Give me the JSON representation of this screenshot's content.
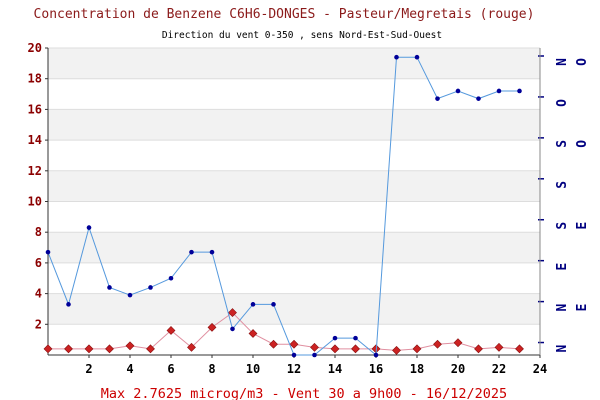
{
  "chart_data": {
    "type": "line",
    "title": "Concentration de Benzene C6H6-DONGES - Pasteur/Megretais (rouge)",
    "subtitle": "Direction du vent 0-350 , sens Nord-Est-Sud-Ouest",
    "footer": "Max 2.7625 microg/m3 - Vent 30  a 9h00 - 16/12/2025",
    "x": [
      0,
      1,
      2,
      3,
      4,
      5,
      6,
      7,
      8,
      9,
      10,
      11,
      12,
      13,
      14,
      15,
      16,
      17,
      18,
      19,
      20,
      21,
      22,
      23
    ],
    "xlim": [
      0,
      24
    ],
    "x_ticks": [
      2,
      4,
      6,
      8,
      10,
      12,
      14,
      16,
      18,
      20,
      22,
      24
    ],
    "ylim": [
      0,
      20
    ],
    "y_ticks": [
      2,
      4,
      6,
      8,
      10,
      12,
      14,
      16,
      18,
      20
    ],
    "grid": "alternating horizontal bands",
    "series": [
      {
        "axis": "left",
        "color": "#cc2222",
        "line_color": "#e08fa0",
        "marker": "diamond",
        "values": [
          0.4,
          0.4,
          0.4,
          0.4,
          0.6,
          0.4,
          1.6,
          0.5,
          1.8,
          2.7625,
          1.4,
          0.7,
          0.7,
          0.5,
          0.4,
          0.4,
          0.4,
          0.3,
          0.4,
          0.7,
          0.8,
          0.4,
          0.5,
          0.4
        ]
      },
      {
        "axis": "right",
        "color": "#000099",
        "line_color": "#5599dd",
        "marker": "dot",
        "values": [
          6.7,
          3.3,
          8.3,
          4.4,
          3.9,
          4.4,
          5.0,
          6.7,
          6.7,
          1.7,
          3.3,
          3.3,
          0.0,
          0.0,
          1.1,
          1.1,
          0.0,
          19.4,
          19.4,
          16.7,
          17.2,
          16.7,
          17.2,
          17.2
        ]
      }
    ],
    "right_axis": {
      "label_rows": [
        [
          "N",
          "O"
        ],
        [
          "O"
        ],
        [
          "S",
          "O"
        ],
        [
          "S"
        ],
        [
          "S",
          "E"
        ],
        [
          "E"
        ],
        [
          "N",
          "E"
        ],
        [
          "N"
        ]
      ]
    }
  }
}
